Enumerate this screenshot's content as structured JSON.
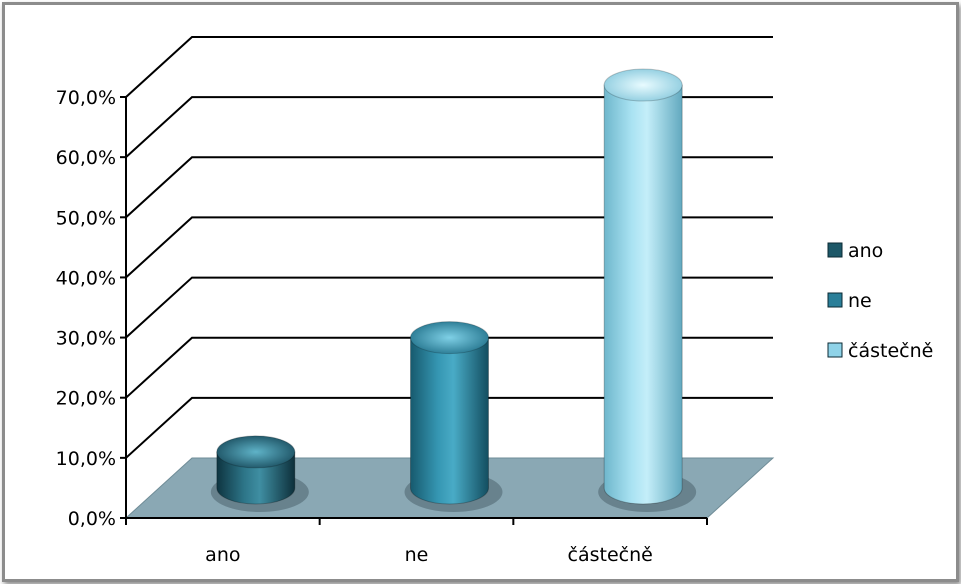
{
  "chart_data": {
    "type": "bar",
    "style": "3d-cylinder",
    "categories": [
      "ano",
      "ne",
      "částečně"
    ],
    "values": [
      6.0,
      25.0,
      67.0
    ],
    "value_unit": "%",
    "ylim": [
      0,
      70
    ],
    "yticks": [
      "0,0%",
      "10,0%",
      "20,0%",
      "30,0%",
      "40,0%",
      "50,0%",
      "60,0%",
      "70,0%"
    ],
    "grid": true,
    "legend": {
      "placement": "right",
      "entries": [
        "ano",
        "ne",
        "částečně"
      ]
    },
    "colors": [
      "#1d5868",
      "#2a7f99",
      "#8fd3e8"
    ],
    "floor_color": "#8aa8b4",
    "title": "",
    "xlabel": "",
    "ylabel": ""
  }
}
